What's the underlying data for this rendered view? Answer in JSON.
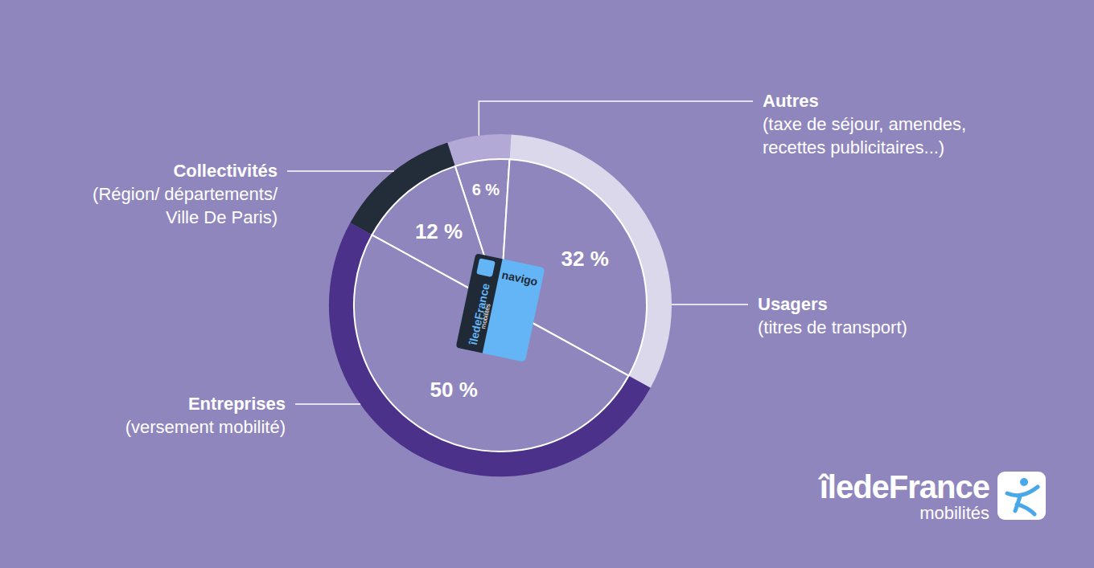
{
  "chart_data": {
    "type": "pie",
    "categories": [
      "Autres",
      "Usagers",
      "Entreprises",
      "Collectivités"
    ],
    "category_notes": [
      [
        "(taxe de séjour, amendes,",
        "recettes publicitaires...)"
      ],
      [
        "(titres de transport)"
      ],
      [
        "(versement mobilité)"
      ],
      [
        "(Région/ départements/",
        "Ville De Paris)"
      ]
    ],
    "values": [
      6,
      32,
      50,
      12
    ],
    "value_labels": [
      "6 %",
      "32 %",
      "50 %",
      "12 %"
    ],
    "colors": [
      "#b3a9d6",
      "#dcd8ec",
      "#4b318a",
      "#232d3a"
    ],
    "data_labels": true,
    "annotations": [
      "navigo",
      "îledeFrance",
      "mobilités"
    ]
  }
}
